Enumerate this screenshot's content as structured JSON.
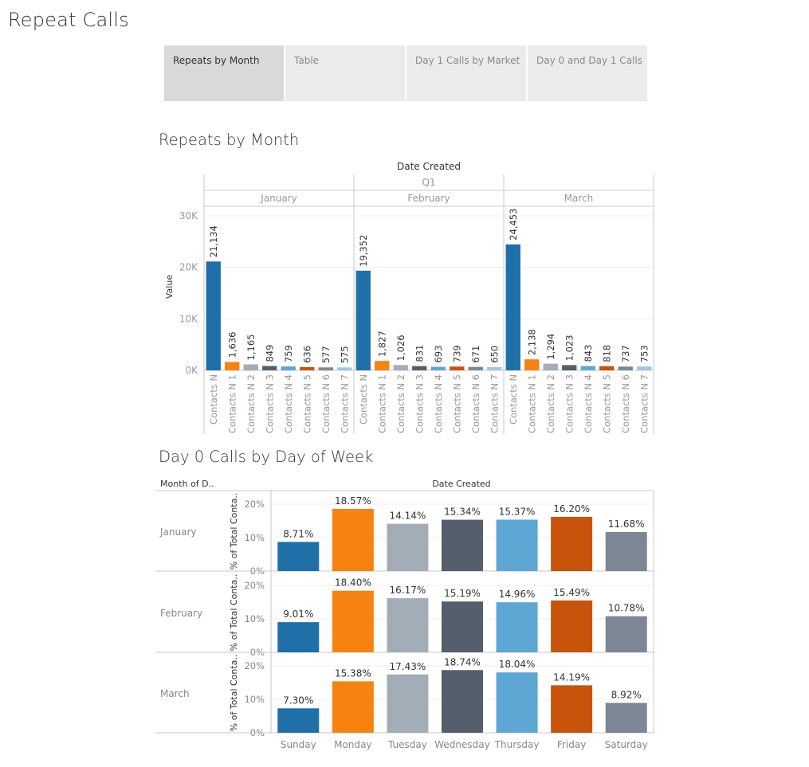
{
  "page": {
    "title": "Repeat Calls"
  },
  "tabs": [
    {
      "label": "Repeats by Month",
      "active": true
    },
    {
      "label": "Table",
      "active": false
    },
    {
      "label": "Day 1 Calls by Market",
      "active": false
    },
    {
      "label": "Day 0 and Day 1 Calls",
      "active": false
    }
  ],
  "sections": {
    "repeats_title": "Repeats by Month",
    "day0_title": "Day 0 Calls by Day of Week"
  },
  "colors": {
    "palette": [
      "#1f6fa8",
      "#f7820f",
      "#a3adb8",
      "#555e6c",
      "#5ea6d4",
      "#c8530a",
      "#7c8694",
      "#9cc9e7"
    ]
  },
  "chart_data": [
    {
      "type": "bar",
      "title": "Repeats by Month",
      "header": "Date Created",
      "quarter": "Q1",
      "ylabel": "Value",
      "ylim": [
        0,
        30000
      ],
      "yticks": [
        0,
        10000,
        20000,
        30000
      ],
      "ytick_labels": [
        "0K",
        "10K",
        "20K",
        "30K"
      ],
      "categories": [
        "Contacts N",
        "Contacts N 1",
        "Contacts N 2",
        "Contacts N 3",
        "Contacts N 4",
        "Contacts N 5",
        "Contacts N 6",
        "Contacts N 7"
      ],
      "panels": [
        {
          "name": "January",
          "values": [
            21134,
            1636,
            1165,
            849,
            759,
            636,
            577,
            575
          ],
          "labels": [
            "21,134",
            "1,636",
            "1,165",
            "849",
            "759",
            "636",
            "577",
            "575"
          ]
        },
        {
          "name": "February",
          "values": [
            19352,
            1827,
            1026,
            831,
            693,
            739,
            671,
            650
          ],
          "labels": [
            "19,352",
            "1,827",
            "1,026",
            "831",
            "693",
            "739",
            "671",
            "650"
          ]
        },
        {
          "name": "March",
          "values": [
            24453,
            2138,
            1294,
            1023,
            843,
            818,
            737,
            753
          ],
          "labels": [
            "24,453",
            "2,138",
            "1,294",
            "1,023",
            "843",
            "818",
            "737",
            "753"
          ]
        }
      ]
    },
    {
      "type": "bar",
      "title": "Day 0 Calls by Day of Week",
      "header": "Date Created",
      "row_header": "Month of D..",
      "ylabel": "% of Total Conta..",
      "ylim": [
        0,
        25
      ],
      "yticks": [
        0,
        10,
        20
      ],
      "ytick_labels": [
        "0%",
        "10%",
        "20%"
      ],
      "categories": [
        "Sunday",
        "Monday",
        "Tuesday",
        "Wednesday",
        "Thursday",
        "Friday",
        "Saturday"
      ],
      "rows": [
        {
          "name": "January",
          "values": [
            8.71,
            18.57,
            14.14,
            15.34,
            15.37,
            16.2,
            11.68
          ],
          "labels": [
            "8.71%",
            "18.57%",
            "14.14%",
            "15.34%",
            "15.37%",
            "16.20%",
            "11.68%"
          ]
        },
        {
          "name": "February",
          "values": [
            9.01,
            18.4,
            16.17,
            15.19,
            14.96,
            15.49,
            10.78
          ],
          "labels": [
            "9.01%",
            "18.40%",
            "16.17%",
            "15.19%",
            "14.96%",
            "15.49%",
            "10.78%"
          ]
        },
        {
          "name": "March",
          "values": [
            7.3,
            15.38,
            17.43,
            18.74,
            18.04,
            14.19,
            8.92
          ],
          "labels": [
            "7.30%",
            "15.38%",
            "17.43%",
            "18.74%",
            "18.04%",
            "14.19%",
            "8.92%"
          ]
        }
      ]
    }
  ]
}
